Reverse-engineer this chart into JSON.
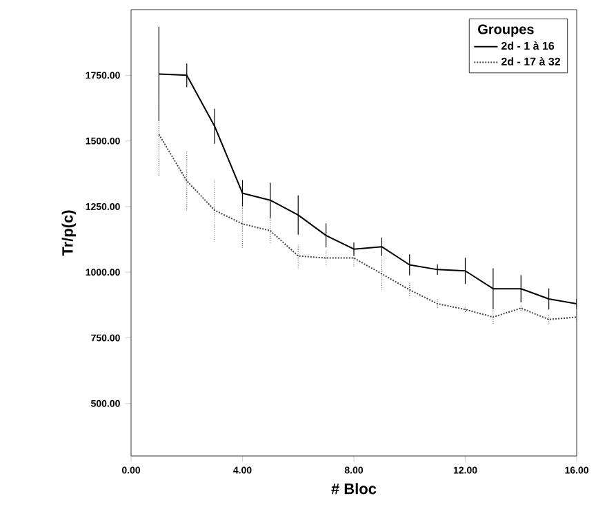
{
  "chart_data": {
    "type": "line",
    "xlabel": "# Bloc",
    "ylabel": "Tr/p(c)",
    "legend_title": "Groupes",
    "x": [
      1,
      2,
      3,
      4,
      5,
      6,
      7,
      8,
      9,
      10,
      11,
      12,
      13,
      14,
      15,
      16
    ],
    "series": [
      {
        "name": "2d - 1 à 16",
        "color": "#000000",
        "line_style": "solid",
        "values": [
          1755,
          1750,
          1556,
          1301,
          1274,
          1218,
          1140,
          1088,
          1097,
          1028,
          1010,
          1005,
          937,
          937,
          898,
          880
        ],
        "errors": [
          180,
          45,
          67,
          50,
          67,
          75,
          46,
          25,
          35,
          40,
          20,
          50,
          78,
          52,
          40,
          20
        ]
      },
      {
        "name": "2d - 17 à 32",
        "color": "#404040",
        "line_style": "dotted",
        "values": [
          1525,
          1348,
          1236,
          1184,
          1158,
          1062,
          1054,
          1054,
          994,
          933,
          880,
          858,
          829,
          863,
          820,
          829
        ],
        "errors": [
          160,
          112,
          118,
          93,
          48,
          45,
          30,
          35,
          60,
          30,
          20,
          15,
          25,
          15,
          20,
          20
        ]
      }
    ],
    "xlim": [
      0,
      16
    ],
    "ylim": [
      300,
      2000
    ],
    "xticks": [
      {
        "value": 0,
        "label": "0.00"
      },
      {
        "value": 4,
        "label": "4.00"
      },
      {
        "value": 8,
        "label": "8.00"
      },
      {
        "value": 12,
        "label": "12.00"
      },
      {
        "value": 16,
        "label": "16.00"
      }
    ],
    "yticks": [
      {
        "value": 500,
        "label": "500.00"
      },
      {
        "value": 750,
        "label": "750.00"
      },
      {
        "value": 1000,
        "label": "1000.00"
      },
      {
        "value": 1250,
        "label": "1250.00"
      },
      {
        "value": 1500,
        "label": "1500.00"
      },
      {
        "value": 1750,
        "label": "1750.00"
      }
    ],
    "grid": false,
    "legend": "top right",
    "marker": "none"
  }
}
